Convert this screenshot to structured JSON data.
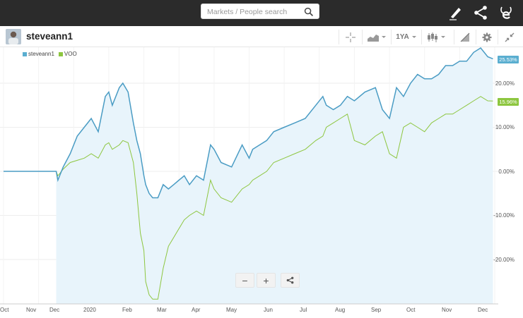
{
  "search": {
    "placeholder": "Markets / People search"
  },
  "header": {
    "username": "steveann1"
  },
  "toolbar": {
    "period_label": "1YA"
  },
  "legend": [
    {
      "label": "steveann1",
      "color": "#5aaed0"
    },
    {
      "label": "VOO",
      "color": "#8dc63f"
    }
  ],
  "badges": {
    "steveann1": "25.53%",
    "voo": "15.96%"
  },
  "y_axis_labels": [
    "20.00%",
    "10.00%",
    "0.00%",
    "-10.00%",
    "-20.00%"
  ],
  "x_axis_labels": [
    "Oct",
    "Nov",
    "Dec",
    "2020",
    "Feb",
    "Mar",
    "Apr",
    "May",
    "Jun",
    "Jul",
    "Aug",
    "Sep",
    "Oct",
    "Nov",
    "Dec"
  ],
  "zoom": {
    "minus": "−",
    "plus": "+"
  },
  "colors": {
    "topbar": "#2b2b2b",
    "line_portfolio": "#4a9cc4",
    "line_benchmark": "#8dc63f",
    "fill": "#e8f4fb"
  },
  "chart_data": {
    "type": "line",
    "title": "",
    "xlabel": "",
    "ylabel": "",
    "ylim": [
      -30,
      30
    ],
    "x": [
      0,
      1.5,
      1.55,
      1.7,
      1.9,
      2.1,
      2.3,
      2.5,
      2.7,
      2.9,
      3.0,
      3.1,
      3.3,
      3.4,
      3.55,
      3.7,
      3.8,
      3.9,
      4.0,
      4.05,
      4.15,
      4.25,
      4.4,
      4.55,
      4.7,
      4.85,
      5.0,
      5.15,
      5.3,
      5.5,
      5.7,
      5.9,
      6.0,
      6.2,
      6.5,
      6.8,
      7.0,
      7.1,
      7.3,
      7.5,
      7.7,
      8.0,
      8.3,
      8.6,
      8.9,
      9.1,
      9.2,
      9.4,
      9.6,
      9.8,
      10.0,
      10.3,
      10.6,
      10.8,
      11.0,
      11.2,
      11.4,
      11.6,
      11.8,
      12.0,
      12.2,
      12.4,
      12.6,
      12.8,
      13.0,
      13.2,
      13.4,
      13.6,
      13.8,
      13.95
    ],
    "series": [
      {
        "name": "steveann1",
        "values": [
          0,
          0,
          -2,
          1,
          4,
          8,
          10,
          12,
          9,
          17,
          18,
          15,
          19,
          20,
          18,
          11,
          7,
          4,
          -1,
          -3,
          -5,
          -6,
          -6,
          -3,
          -4,
          -3,
          -2,
          -1,
          -3,
          -1,
          -2,
          6,
          5,
          2,
          1,
          6,
          3,
          5,
          6,
          7,
          9,
          10,
          11,
          12,
          15,
          17,
          15,
          14,
          15,
          17,
          16,
          18,
          19,
          14,
          12,
          19,
          17,
          20,
          22,
          21,
          21,
          22,
          24,
          24,
          25,
          25,
          27,
          28,
          26,
          25.53
        ]
      },
      {
        "name": "VOO",
        "values": [
          0,
          0,
          -1,
          0.5,
          2,
          2.5,
          3,
          4,
          3,
          6,
          6.5,
          5,
          6,
          7,
          6.5,
          2,
          -5,
          -14,
          -18,
          -25,
          -28,
          -29,
          -29,
          -22,
          -17,
          -15,
          -13,
          -11,
          -10,
          -9,
          -10,
          -2,
          -4,
          -6,
          -7,
          -4,
          -3,
          -2,
          -1,
          0,
          2,
          3,
          4,
          5,
          7,
          8,
          10,
          11,
          12,
          13,
          7,
          6,
          8,
          9,
          4,
          3,
          10,
          11,
          10,
          9,
          11,
          12,
          13,
          13,
          14,
          15,
          16,
          17,
          16,
          15.96
        ]
      }
    ]
  }
}
